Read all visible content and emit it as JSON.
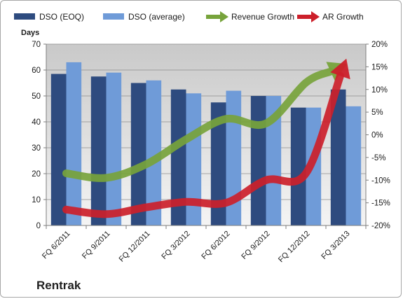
{
  "chart_data": {
    "type": "bar",
    "company": "Rentrak",
    "categories": [
      "FQ 6/2011",
      "FQ 9/2011",
      "FQ 12/2011",
      "FQ 3/2012",
      "FQ 6/2012",
      "FQ 9/2012",
      "FQ 12/2012",
      "FQ 3/2013"
    ],
    "ylabel": "Days",
    "ylim": [
      0,
      70
    ],
    "yticks": [
      "0",
      "10",
      "20",
      "30",
      "40",
      "50",
      "60",
      "70"
    ],
    "y2lim": [
      -20,
      20
    ],
    "y2ticks": [
      "-20%",
      "-15%",
      "-10%",
      "-5%",
      "0%",
      "5%",
      "10%",
      "15%",
      "20%"
    ],
    "legend_position": "top",
    "series": [
      {
        "name": "DSO (EOQ)",
        "kind": "bar",
        "axis": "left",
        "color": "#2e4b7f",
        "values": [
          58.5,
          57.5,
          55,
          52.5,
          47.5,
          50,
          45.5,
          52.5
        ]
      },
      {
        "name": "DSO (average)",
        "kind": "bar",
        "axis": "left",
        "color": "#6f9bd8",
        "values": [
          63,
          59,
          56,
          51,
          52,
          50,
          45.5,
          46
        ]
      },
      {
        "name": "Revenue Growth",
        "kind": "arrow-line",
        "axis": "right",
        "unit": "%",
        "color": "#77a33b",
        "values": [
          -8.5,
          -9.5,
          -6.5,
          -1,
          3.5,
          2.5,
          11.5,
          15.5
        ]
      },
      {
        "name": "AR Growth",
        "kind": "arrow-line",
        "axis": "right",
        "unit": "%",
        "color": "#cc1f2a",
        "values": [
          -16.5,
          -17.5,
          -16,
          -14.8,
          -15,
          -10,
          -8.5,
          16.5
        ]
      }
    ]
  }
}
